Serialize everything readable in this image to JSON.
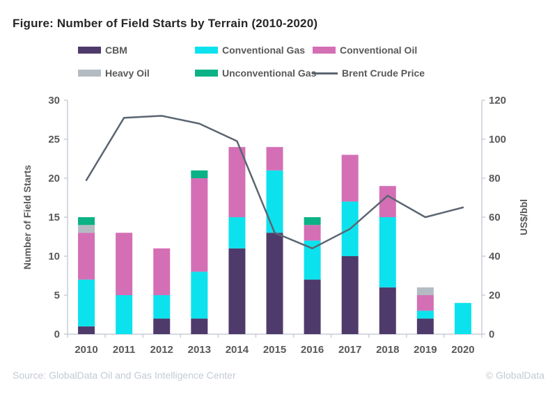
{
  "title": "Figure: Number of Field Starts by Terrain (2010-2020)",
  "footer": {
    "source": "Source: GlobalData Oil and Gas Intelligence Center",
    "copyright": "© GlobalData"
  },
  "chart_data": {
    "type": "bar",
    "subtype": "stacked-columns-with-line-overlay",
    "title": "Figure: Number of Field Starts by Terrain (2010-2020)",
    "categories": [
      "2010",
      "2011",
      "2012",
      "2013",
      "2014",
      "2015",
      "2016",
      "2017",
      "2018",
      "2019",
      "2020"
    ],
    "series": [
      {
        "name": "CBM",
        "type": "bar",
        "axis": "left",
        "color": "#4f3b6b",
        "values": [
          1,
          0,
          2,
          2,
          11,
          13,
          7,
          10,
          6,
          2,
          0
        ]
      },
      {
        "name": "Conventional Gas",
        "type": "bar",
        "axis": "left",
        "color": "#0ce2ee",
        "values": [
          6,
          5,
          3,
          6,
          4,
          8,
          5,
          7,
          9,
          1,
          4
        ]
      },
      {
        "name": "Conventional Oil",
        "type": "bar",
        "axis": "left",
        "color": "#d46fb5",
        "values": [
          6,
          8,
          6,
          12,
          9,
          3,
          2,
          6,
          4,
          2,
          0
        ]
      },
      {
        "name": "Heavy Oil",
        "type": "bar",
        "axis": "left",
        "color": "#b4bbc3",
        "values": [
          1,
          0,
          0,
          0,
          0,
          0,
          0,
          0,
          0,
          1,
          0
        ]
      },
      {
        "name": "Unconventional Gas",
        "type": "bar",
        "axis": "left",
        "color": "#0bb286",
        "values": [
          1,
          0,
          0,
          1,
          0,
          0,
          1,
          0,
          0,
          0,
          0
        ]
      },
      {
        "name": "Brent Crude Price",
        "type": "line",
        "axis": "right",
        "color": "#5b6571",
        "values": [
          79,
          111,
          112,
          108,
          99,
          52,
          44,
          54,
          71,
          60,
          65
        ]
      }
    ],
    "stack_totals": [
      15,
      13,
      11,
      21,
      24,
      24,
      15,
      23,
      19,
      6,
      4
    ],
    "left_axis": {
      "title": "Number of Field Starts",
      "min": 0,
      "max": 30,
      "ticks": [
        0,
        5,
        10,
        15,
        20,
        25,
        30
      ]
    },
    "right_axis": {
      "title": "US$/bbl",
      "min": 0,
      "max": 120,
      "ticks": [
        0,
        20,
        40,
        60,
        80,
        100,
        120
      ]
    },
    "grid": false,
    "legend_position": "top"
  },
  "style": {
    "axis_line_color": "#c9ced5",
    "label_color": "#595959",
    "title_color": "#262626",
    "footer_color": "#c3c9d3"
  }
}
